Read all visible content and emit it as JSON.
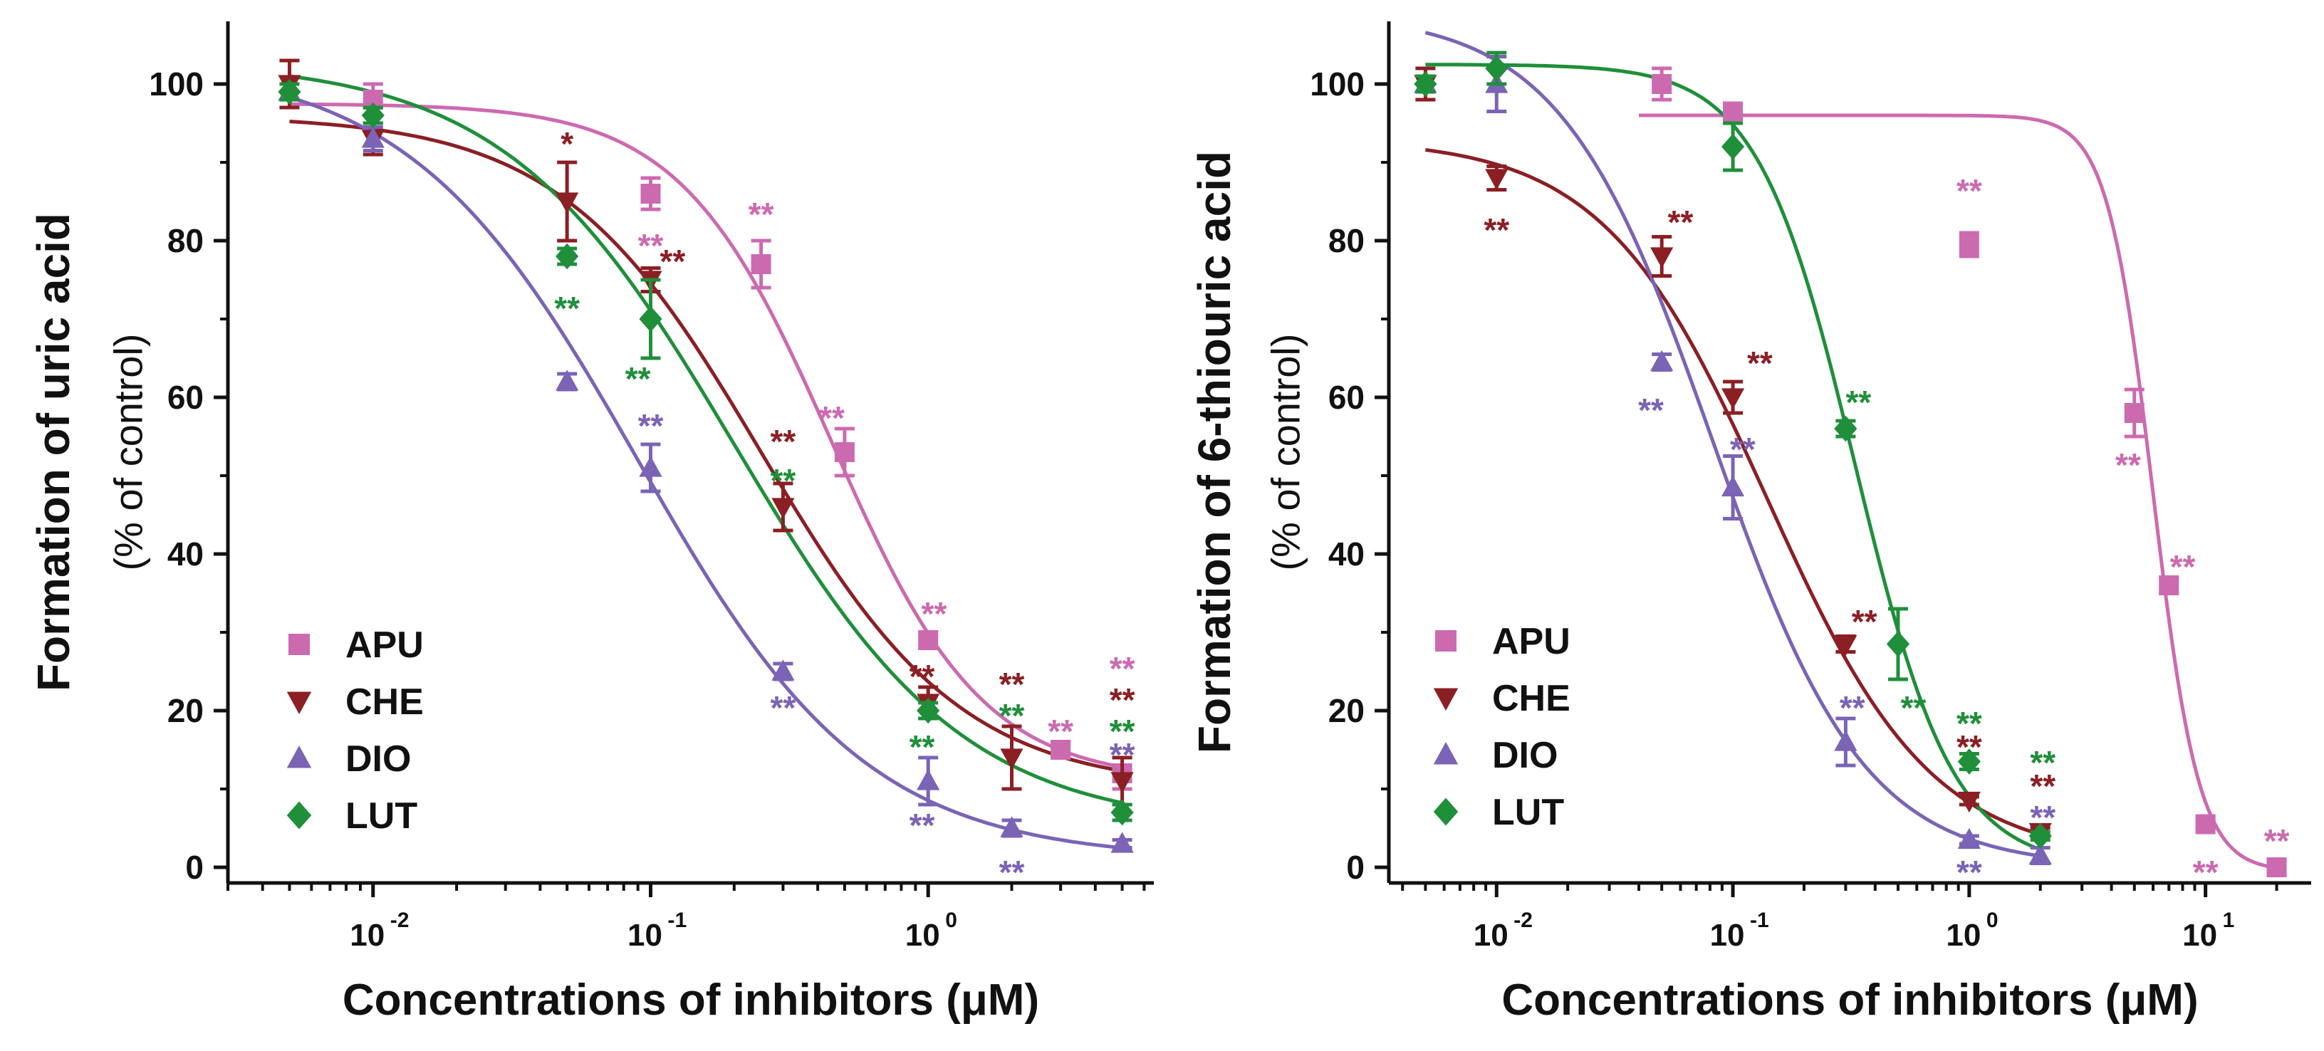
{
  "colors": {
    "APU": "#cc6ab0",
    "CHE": "#8b1f24",
    "DIO": "#7b63b5",
    "LUT": "#1f8f3a"
  },
  "chart_data": [
    {
      "type": "scatter",
      "title": "",
      "ylabel": "Formation of uric acid",
      "ylabel_sub": "(% of control)",
      "xlabel": "Concentrations of inhibitors (μM)",
      "xscale": "log",
      "xlim": [
        0.003,
        6.5
      ],
      "ylim": [
        -2,
        108
      ],
      "yticks": [
        0,
        20,
        40,
        60,
        80,
        100
      ],
      "xticks": [
        {
          "value": 0.01,
          "base": "10",
          "exp": "-2"
        },
        {
          "value": 0.1,
          "base": "10",
          "exp": "-1"
        },
        {
          "value": 1,
          "base": "10",
          "exp": "0"
        }
      ],
      "legend": [
        "APU",
        "CHE",
        "DIO",
        "LUT"
      ],
      "legend_position": "bottom-left",
      "series": [
        {
          "name": "APU",
          "marker": "square",
          "points": [
            {
              "x": 0.01,
              "y": 98,
              "err": 2
            },
            {
              "x": 0.1,
              "y": 86,
              "err": 2
            },
            {
              "x": 0.25,
              "y": 77,
              "err": 3
            },
            {
              "x": 0.5,
              "y": 53,
              "err": 3
            },
            {
              "x": 1,
              "y": 29,
              "err": 1
            },
            {
              "x": 3,
              "y": 15,
              "err": 1
            },
            {
              "x": 5,
              "y": 12,
              "err": 2
            }
          ],
          "curve": {
            "bottom": 11,
            "top": 97.5,
            "ic50": 0.45,
            "hill": 1.6
          }
        },
        {
          "name": "CHE",
          "marker": "triangle-down",
          "points": [
            {
              "x": 0.005,
              "y": 100,
              "err": 3
            },
            {
              "x": 0.01,
              "y": 93,
              "err": 2
            },
            {
              "x": 0.05,
              "y": 85,
              "err": 5
            },
            {
              "x": 0.1,
              "y": 75,
              "err": 1.5
            },
            {
              "x": 0.3,
              "y": 46,
              "err": 3
            },
            {
              "x": 1,
              "y": 21,
              "err": 2
            },
            {
              "x": 2,
              "y": 14,
              "err": 4
            },
            {
              "x": 5,
              "y": 11,
              "err": 3
            }
          ],
          "curve": {
            "bottom": 10,
            "top": 96,
            "ic50": 0.25,
            "hill": 1.2
          }
        },
        {
          "name": "DIO",
          "marker": "triangle-up",
          "points": [
            {
              "x": 0.005,
              "y": 99,
              "err": 1
            },
            {
              "x": 0.01,
              "y": 93,
              "err": 1.5
            },
            {
              "x": 0.05,
              "y": 62,
              "err": 1
            },
            {
              "x": 0.1,
              "y": 51,
              "err": 3
            },
            {
              "x": 0.3,
              "y": 25,
              "err": 1
            },
            {
              "x": 1,
              "y": 11,
              "err": 3
            },
            {
              "x": 2,
              "y": 5,
              "err": 1
            },
            {
              "x": 5,
              "y": 3,
              "err": 0.5
            }
          ],
          "curve": {
            "bottom": 1,
            "top": 103,
            "ic50": 0.09,
            "hill": 1.05
          }
        },
        {
          "name": "LUT",
          "marker": "diamond",
          "points": [
            {
              "x": 0.005,
              "y": 99,
              "err": 1
            },
            {
              "x": 0.01,
              "y": 96,
              "err": 1
            },
            {
              "x": 0.05,
              "y": 78,
              "err": 1
            },
            {
              "x": 0.1,
              "y": 70,
              "err": 5
            },
            {
              "x": 1,
              "y": 20,
              "err": 1
            },
            {
              "x": 5,
              "y": 7,
              "err": 1
            }
          ],
          "curve": {
            "bottom": 5,
            "top": 103,
            "ic50": 0.2,
            "hill": 1.05
          }
        }
      ],
      "annotations": [
        {
          "text": "*",
          "series": "CHE",
          "x": 0.05,
          "y": 92
        },
        {
          "text": "**",
          "series": "LUT",
          "x": 0.05,
          "y": 71
        },
        {
          "text": "**",
          "series": "APU",
          "x": 0.1,
          "y": 79
        },
        {
          "text": "**",
          "series": "CHE",
          "x": 0.12,
          "y": 77
        },
        {
          "text": "**",
          "series": "LUT",
          "x": 0.09,
          "y": 62
        },
        {
          "text": "**",
          "series": "DIO",
          "x": 0.1,
          "y": 56
        },
        {
          "text": "**",
          "series": "APU",
          "x": 0.25,
          "y": 83
        },
        {
          "text": "**",
          "series": "CHE",
          "x": 0.3,
          "y": 54
        },
        {
          "text": "**",
          "series": "LUT",
          "x": 0.3,
          "y": 49
        },
        {
          "text": "**",
          "series": "APU",
          "x": 0.45,
          "y": 57
        },
        {
          "text": "**",
          "series": "DIO",
          "x": 0.3,
          "y": 20
        },
        {
          "text": "**",
          "series": "APU",
          "x": 1.05,
          "y": 32
        },
        {
          "text": "**",
          "series": "CHE",
          "x": 0.95,
          "y": 24
        },
        {
          "text": "**",
          "series": "LUT",
          "x": 0.95,
          "y": 15
        },
        {
          "text": "**",
          "series": "DIO",
          "x": 0.95,
          "y": 5
        },
        {
          "text": "**",
          "series": "CHE",
          "x": 2,
          "y": 23
        },
        {
          "text": "**",
          "series": "LUT",
          "x": 2,
          "y": 19
        },
        {
          "text": "**",
          "series": "DIO",
          "x": 2,
          "y": -1
        },
        {
          "text": "**",
          "series": "APU",
          "x": 3,
          "y": 17
        },
        {
          "text": "**",
          "series": "APU",
          "x": 5,
          "y": 25
        },
        {
          "text": "**",
          "series": "CHE",
          "x": 5,
          "y": 21
        },
        {
          "text": "**",
          "series": "LUT",
          "x": 5,
          "y": 17
        },
        {
          "text": "**",
          "series": "DIO",
          "x": 5,
          "y": 14
        }
      ]
    },
    {
      "type": "scatter",
      "title": "",
      "ylabel": "Formation of 6-thiouric acid",
      "ylabel_sub": "(% of control)",
      "xlabel": "Concentrations of inhibitors (μM)",
      "xscale": "log",
      "xlim": [
        0.0035,
        28
      ],
      "ylim": [
        -2,
        108
      ],
      "yticks": [
        0,
        20,
        40,
        60,
        80,
        100
      ],
      "xticks": [
        {
          "value": 0.01,
          "base": "10",
          "exp": "-2"
        },
        {
          "value": 0.1,
          "base": "10",
          "exp": "-1"
        },
        {
          "value": 1,
          "base": "10",
          "exp": "0"
        },
        {
          "value": 10,
          "base": "10",
          "exp": "1"
        }
      ],
      "legend": [
        "APU",
        "CHE",
        "DIO",
        "LUT"
      ],
      "legend_position": "bottom-left",
      "series": [
        {
          "name": "APU",
          "marker": "square",
          "points": [
            {
              "x": 0.05,
              "y": 100,
              "err": 2
            },
            {
              "x": 0.1,
              "y": 96.5,
              "err": 1
            },
            {
              "x": 1,
              "y": 79.5,
              "err": 1.5
            },
            {
              "x": 5,
              "y": 58,
              "err": 3
            },
            {
              "x": 7,
              "y": 36,
              "err": 1
            },
            {
              "x": 10,
              "y": 5.5,
              "err": 0.5
            },
            {
              "x": 20,
              "y": 0,
              "err": 0.3
            }
          ],
          "curve": {
            "bottom": -0.5,
            "top": 96,
            "ic50": 6.0,
            "hill": 4.5,
            "xmin": 0.04,
            "xmax": 20
          }
        },
        {
          "name": "CHE",
          "marker": "triangle-down",
          "points": [
            {
              "x": 0.005,
              "y": 100,
              "err": 2
            },
            {
              "x": 0.01,
              "y": 88,
              "err": 1.5
            },
            {
              "x": 0.05,
              "y": 78,
              "err": 2.5
            },
            {
              "x": 0.1,
              "y": 60,
              "err": 2
            },
            {
              "x": 0.3,
              "y": 28.5,
              "err": 1
            },
            {
              "x": 1,
              "y": 8.5,
              "err": 0.5
            },
            {
              "x": 2,
              "y": 4.5,
              "err": 0.5
            }
          ],
          "curve": {
            "bottom": 1,
            "top": 93,
            "ic50": 0.14,
            "hill": 1.25,
            "xmin": 0.005,
            "xmax": 2
          }
        },
        {
          "name": "DIO",
          "marker": "triangle-up",
          "points": [
            {
              "x": 0.005,
              "y": 100,
              "err": 1
            },
            {
              "x": 0.01,
              "y": 100,
              "err": 3.5
            },
            {
              "x": 0.05,
              "y": 64.5,
              "err": 1
            },
            {
              "x": 0.1,
              "y": 48.5,
              "err": 4
            },
            {
              "x": 0.3,
              "y": 16,
              "err": 3
            },
            {
              "x": 1,
              "y": 3.5,
              "err": 0.5
            },
            {
              "x": 2,
              "y": 1.5,
              "err": 1
            }
          ],
          "curve": {
            "bottom": 0,
            "top": 109,
            "ic50": 0.082,
            "hill": 1.35,
            "xmin": 0.005,
            "xmax": 2
          }
        },
        {
          "name": "LUT",
          "marker": "diamond",
          "points": [
            {
              "x": 0.005,
              "y": 100,
              "err": 1
            },
            {
              "x": 0.01,
              "y": 102,
              "err": 2
            },
            {
              "x": 0.1,
              "y": 92,
              "err": 3
            },
            {
              "x": 0.3,
              "y": 56,
              "err": 1
            },
            {
              "x": 0.5,
              "y": 28.5,
              "err": 4.5
            },
            {
              "x": 1,
              "y": 13.5,
              "err": 1
            },
            {
              "x": 2,
              "y": 4,
              "err": 0.5
            }
          ],
          "curve": {
            "bottom": 0,
            "top": 102.5,
            "ic50": 0.33,
            "hill": 2.1,
            "xmin": 0.005,
            "xmax": 2
          }
        }
      ],
      "annotations": [
        {
          "text": "**",
          "series": "CHE",
          "x": 0.01,
          "y": 81
        },
        {
          "text": "**",
          "series": "CHE",
          "x": 0.06,
          "y": 82
        },
        {
          "text": "**",
          "series": "DIO",
          "x": 0.045,
          "y": 58
        },
        {
          "text": "**",
          "series": "CHE",
          "x": 0.13,
          "y": 64
        },
        {
          "text": "**",
          "series": "DIO",
          "x": 0.11,
          "y": 53
        },
        {
          "text": "**",
          "series": "LUT",
          "x": 0.34,
          "y": 59
        },
        {
          "text": "**",
          "series": "APU",
          "x": 1.0,
          "y": 86
        },
        {
          "text": "**",
          "series": "APU",
          "x": 4.7,
          "y": 51
        },
        {
          "text": "**",
          "series": "APU",
          "x": 8,
          "y": 38
        },
        {
          "text": "**",
          "series": "CHE",
          "x": 0.36,
          "y": 31
        },
        {
          "text": "**",
          "series": "DIO",
          "x": 0.32,
          "y": 20
        },
        {
          "text": "**",
          "series": "LUT",
          "x": 0.58,
          "y": 20
        },
        {
          "text": "**",
          "series": "LUT",
          "x": 1.0,
          "y": 18
        },
        {
          "text": "**",
          "series": "CHE",
          "x": 1.0,
          "y": 15
        },
        {
          "text": "**",
          "series": "DIO",
          "x": 1.0,
          "y": -1
        },
        {
          "text": "**",
          "series": "LUT",
          "x": 2.05,
          "y": 13
        },
        {
          "text": "**",
          "series": "CHE",
          "x": 2.05,
          "y": 10
        },
        {
          "text": "**",
          "series": "DIO",
          "x": 2.05,
          "y": 6
        },
        {
          "text": "**",
          "series": "APU",
          "x": 10,
          "y": -1
        },
        {
          "text": "**",
          "series": "APU",
          "x": 20,
          "y": 3
        }
      ]
    }
  ]
}
